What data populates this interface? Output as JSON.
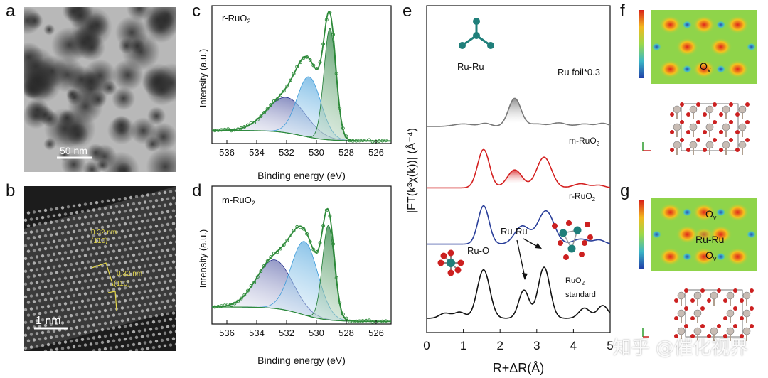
{
  "figure": {
    "panel_letters": [
      "a",
      "b",
      "c",
      "d",
      "e",
      "f",
      "g"
    ],
    "watermark": "知乎 @催化视界",
    "colors": {
      "xps_fit": "#2e8b3a",
      "peak_blue": "#1f2a8a",
      "peak_light": "#3a9ad9",
      "peak_green": "#1a7a30",
      "exafs_foil": "#777777",
      "exafs_m": "#d42020",
      "exafs_r": "#2a3f9a",
      "exafs_std": "#111111",
      "ru_atom": "#1f7f7a",
      "o_atom": "#cc2020"
    }
  },
  "panel_a": {
    "scale_bar": "50 nm"
  },
  "panel_b": {
    "scale_bar": "1 nm",
    "annotations": [
      {
        "d": "0.32 nm",
        "plane": "(1̄10)"
      },
      {
        "d": "0.32 nm",
        "plane": "(110)"
      }
    ]
  },
  "panel_c": {
    "sample": "r-RuO",
    "sample_sub": "2"
  },
  "panel_d": {
    "sample": "m-RuO",
    "sample_sub": "2"
  },
  "panel_e": {
    "labels": {
      "ru_ru_top": "Ru-Ru",
      "foil": "Ru foil*0.3",
      "m": "m-RuO",
      "m_sub": "2",
      "r": "r-RuO",
      "r_sub": "2",
      "ru_o": "Ru-O",
      "ru_ru_mid": "Ru-Ru",
      "std_top": "RuO",
      "std_sub": "2",
      "std_bottom": "standard"
    }
  },
  "panel_f": {
    "label": "O",
    "label_sub": "v"
  },
  "panel_g": {
    "label_top": "O",
    "label_top_sub": "v",
    "label_mid": "Ru-Ru",
    "label_bot": "O",
    "label_bot_sub": "v"
  },
  "chart_data": [
    {
      "id": "c",
      "type": "line",
      "title": "r-RuO2",
      "xlabel": "Binding energy (eV)",
      "ylabel": "Intensity (a.u.)",
      "xlim": [
        537,
        525
      ],
      "x_ticks": [
        536,
        534,
        532,
        530,
        528,
        526
      ],
      "ylim": [
        0,
        1.05
      ],
      "series": [
        {
          "name": "peak-1",
          "center": 532.0,
          "height": 0.27,
          "width": 1.3
        },
        {
          "name": "peak-2",
          "center": 530.5,
          "height": 0.46,
          "width": 0.8
        },
        {
          "name": "peak-3",
          "center": 529.1,
          "height": 0.85,
          "width": 0.4
        }
      ],
      "baseline": [
        0.1,
        0.02
      ]
    },
    {
      "id": "d",
      "type": "line",
      "title": "m-RuO2",
      "xlabel": "Binding energy (eV)",
      "ylabel": "Intensity (a.u.)",
      "xlim": [
        537,
        525
      ],
      "x_ticks": [
        536,
        534,
        532,
        530,
        528,
        526
      ],
      "ylim": [
        0,
        1.05
      ],
      "series": [
        {
          "name": "peak-1",
          "center": 532.8,
          "height": 0.37,
          "width": 1.2
        },
        {
          "name": "peak-2",
          "center": 530.8,
          "height": 0.56,
          "width": 0.9
        },
        {
          "name": "peak-3",
          "center": 529.2,
          "height": 0.72,
          "width": 0.4
        }
      ],
      "baseline": [
        0.13,
        0.02
      ]
    },
    {
      "id": "e",
      "type": "line",
      "xlabel": "R+ΔR(Å)",
      "ylabel": "|FT(k³χ(k))| (Å⁻⁴)",
      "xlim": [
        0,
        5
      ],
      "x_ticks": [
        0,
        1,
        2,
        3,
        4,
        5
      ],
      "series": [
        {
          "name": "Ru foil*0.3",
          "offset": 3.75,
          "peaks": [
            [
              1.0,
              0.05,
              0.25
            ],
            [
              1.6,
              0.06,
              0.15
            ],
            [
              2.4,
              0.55,
              0.17
            ],
            [
              3.0,
              0.05,
              0.2
            ],
            [
              3.6,
              0.07,
              0.2
            ],
            [
              4.3,
              0.05,
              0.2
            ],
            [
              4.8,
              0.06,
              0.15
            ]
          ]
        },
        {
          "name": "m-RuO2",
          "offset": 2.55,
          "peaks": [
            [
              1.55,
              0.75,
              0.16
            ],
            [
              2.4,
              0.35,
              0.2
            ],
            [
              3.2,
              0.6,
              0.2
            ],
            [
              4.2,
              0.08,
              0.2
            ],
            [
              4.7,
              0.05,
              0.15
            ]
          ]
        },
        {
          "name": "r-RuO2",
          "offset": 1.45,
          "peaks": [
            [
              1.55,
              0.75,
              0.15
            ],
            [
              2.6,
              0.35,
              0.2
            ],
            [
              3.25,
              0.65,
              0.22
            ],
            [
              4.2,
              0.1,
              0.2
            ],
            [
              4.7,
              0.08,
              0.15
            ]
          ]
        },
        {
          "name": "RuO2 standard",
          "offset": 0.0,
          "peaks": [
            [
              0.5,
              0.1,
              0.15
            ],
            [
              0.9,
              0.12,
              0.15
            ],
            [
              1.55,
              0.95,
              0.17
            ],
            [
              2.65,
              0.55,
              0.14
            ],
            [
              3.2,
              1.0,
              0.16
            ],
            [
              4.3,
              0.2,
              0.15
            ],
            [
              4.8,
              0.25,
              0.15
            ]
          ]
        }
      ]
    }
  ]
}
